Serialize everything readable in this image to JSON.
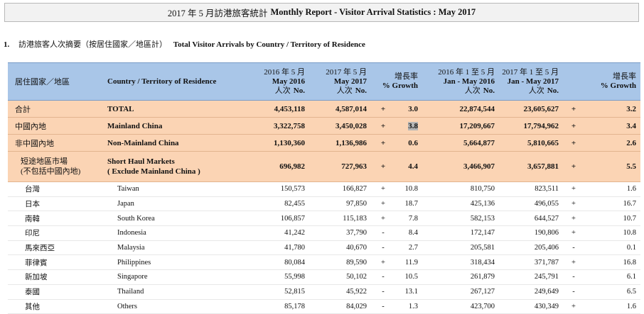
{
  "title": {
    "cn": "2017 年 5 月訪港旅客統計",
    "en": "Monthly Report - Visitor Arrival Statistics : May 2017"
  },
  "section": {
    "number": "1.",
    "cn": "訪港旅客人次摘要（按居住國家／地區計）",
    "en": "Total Visitor Arrivals by Country / Territory of Residence"
  },
  "header": {
    "cn": "居住國家／地區",
    "en": "Country / Territory of Residence",
    "col1": {
      "cn": "2016 年 5 月",
      "en": "May 2016",
      "unit_cn": "人次",
      "unit_en": "No."
    },
    "col2": {
      "cn": "2017 年 5 月",
      "en": "May 2017",
      "unit_cn": "人次",
      "unit_en": "No."
    },
    "growth1": {
      "cn": "增長率",
      "en": "% Growth"
    },
    "col3": {
      "cn": "2016 年 1 至 5 月",
      "en": "Jan - May 2016",
      "unit_cn": "人次",
      "unit_en": "No."
    },
    "col4": {
      "cn": "2017 年 1 至 5 月",
      "en": "Jan - May 2017",
      "unit_cn": "人次",
      "unit_en": "No."
    },
    "growth2": {
      "cn": "增長率",
      "en": "% Growth"
    }
  },
  "summary": [
    {
      "cn": "合計",
      "en": "TOTAL",
      "may16": "4,453,118",
      "may17": "4,587,014",
      "s1": "+",
      "g1": "3.0",
      "ytd16": "22,874,544",
      "ytd17": "23,605,627",
      "s2": "+",
      "g2": "3.2"
    },
    {
      "cn": "中國內地",
      "en": "Mainland China",
      "may16": "3,322,758",
      "may17": "3,450,028",
      "s1": "+",
      "g1": "3.8",
      "ytd16": "17,209,667",
      "ytd17": "17,794,962",
      "s2": "+",
      "g2": "3.4"
    },
    {
      "cn": "非中國內地",
      "en": "Non-Mainland China",
      "may16": "1,130,360",
      "may17": "1,136,986",
      "s1": "+",
      "g1": "0.6",
      "ytd16": "5,664,877",
      "ytd17": "5,810,665",
      "s2": "+",
      "g2": "2.6"
    }
  ],
  "short_haul": {
    "cn1": "短途地區市場",
    "cn2": "(不包括中國內地)",
    "en1": "Short Haul Markets",
    "en2": "( Exclude Mainland China )",
    "may16": "696,982",
    "may17": "727,963",
    "s1": "+",
    "g1": "4.4",
    "ytd16": "3,466,907",
    "ytd17": "3,657,881",
    "s2": "+",
    "g2": "5.5"
  },
  "items": [
    {
      "cn": "台灣",
      "en": "Taiwan",
      "may16": "150,573",
      "may17": "166,827",
      "s1": "+",
      "g1": "10.8",
      "ytd16": "810,750",
      "ytd17": "823,511",
      "s2": "+",
      "g2": "1.6"
    },
    {
      "cn": "日本",
      "en": "Japan",
      "may16": "82,455",
      "may17": "97,850",
      "s1": "+",
      "g1": "18.7",
      "ytd16": "425,136",
      "ytd17": "496,055",
      "s2": "+",
      "g2": "16.7"
    },
    {
      "cn": "南韓",
      "en": "South Korea",
      "may16": "106,857",
      "may17": "115,183",
      "s1": "+",
      "g1": "7.8",
      "ytd16": "582,153",
      "ytd17": "644,527",
      "s2": "+",
      "g2": "10.7"
    },
    {
      "cn": "印尼",
      "en": "Indonesia",
      "may16": "41,242",
      "may17": "37,790",
      "s1": "-",
      "g1": "8.4",
      "ytd16": "172,147",
      "ytd17": "190,806",
      "s2": "+",
      "g2": "10.8"
    },
    {
      "cn": "馬來西亞",
      "en": "Malaysia",
      "may16": "41,780",
      "may17": "40,670",
      "s1": "-",
      "g1": "2.7",
      "ytd16": "205,581",
      "ytd17": "205,406",
      "s2": "-",
      "g2": "0.1"
    },
    {
      "cn": "菲律賓",
      "en": "Philippines",
      "may16": "80,084",
      "may17": "89,590",
      "s1": "+",
      "g1": "11.9",
      "ytd16": "318,434",
      "ytd17": "371,787",
      "s2": "+",
      "g2": "16.8"
    },
    {
      "cn": "新加坡",
      "en": "Singapore",
      "may16": "55,998",
      "may17": "50,102",
      "s1": "-",
      "g1": "10.5",
      "ytd16": "261,879",
      "ytd17": "245,791",
      "s2": "-",
      "g2": "6.1"
    },
    {
      "cn": "泰國",
      "en": "Thailand",
      "may16": "52,815",
      "may17": "45,922",
      "s1": "-",
      "g1": "13.1",
      "ytd16": "267,127",
      "ytd17": "249,649",
      "s2": "-",
      "g2": "6.5"
    },
    {
      "cn": "其他",
      "en": "Others",
      "may16": "85,178",
      "may17": "84,029",
      "s1": "-",
      "g1": "1.3",
      "ytd16": "423,700",
      "ytd17": "430,349",
      "s2": "+",
      "g2": "1.6"
    }
  ]
}
